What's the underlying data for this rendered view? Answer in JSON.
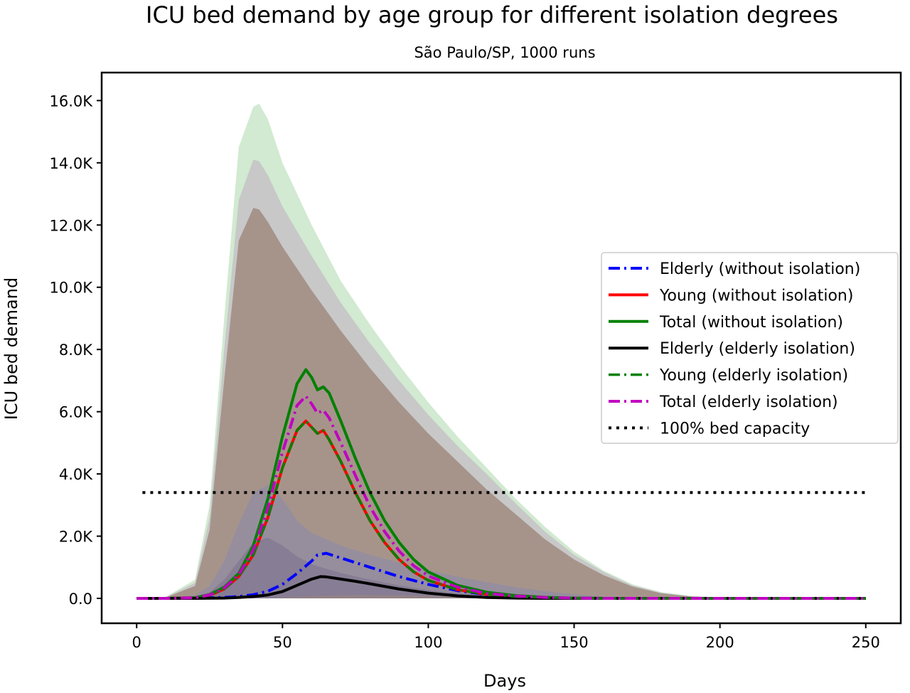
{
  "chart_data": {
    "type": "line",
    "title": "ICU bed demand by age group for different isolation degrees",
    "subtitle": "São Paulo/SP, 1000 runs",
    "xlabel": "Days",
    "ylabel": "ICU bed demand",
    "xlim": [
      -12,
      262
    ],
    "ylim": [
      -800,
      16900
    ],
    "xticks": [
      0,
      50,
      100,
      150,
      200,
      250
    ],
    "xtick_labels": [
      "0",
      "50",
      "100",
      "150",
      "200",
      "250"
    ],
    "yticks": [
      0,
      2000,
      4000,
      6000,
      8000,
      10000,
      12000,
      14000,
      16000
    ],
    "ytick_labels": [
      "0.0",
      "2.0K",
      "4.0K",
      "6.0K",
      "8.0K",
      "10.0K",
      "12.0K",
      "14.0K",
      "16.0K"
    ],
    "legend_position": "right",
    "bands": [
      {
        "color": "#2ca02c",
        "opacity": 0.22,
        "x": [
          0,
          10,
          20,
          25,
          30,
          35,
          40,
          42,
          45,
          50,
          60,
          70,
          80,
          90,
          100,
          110,
          120,
          130,
          140,
          150,
          160,
          170,
          180,
          190,
          200,
          210,
          220,
          250
        ],
        "upper": [
          0,
          50,
          600,
          3000,
          9000,
          14500,
          15800,
          15900,
          15400,
          14000,
          12000,
          10200,
          8800,
          7500,
          6300,
          5200,
          4200,
          3200,
          2300,
          1500,
          900,
          450,
          200,
          80,
          30,
          10,
          0,
          0
        ],
        "lower": [
          0,
          0,
          0,
          0,
          0,
          0,
          0,
          0,
          0,
          0,
          0,
          0,
          0,
          0,
          0,
          0,
          0,
          0,
          0,
          0,
          0,
          0,
          0,
          0,
          0,
          0,
          0,
          0
        ]
      },
      {
        "color": "#b070b0",
        "opacity": 0.28,
        "x": [
          0,
          10,
          20,
          25,
          30,
          35,
          40,
          42,
          45,
          50,
          60,
          70,
          80,
          90,
          100,
          110,
          120,
          130,
          140,
          150,
          160,
          170,
          180,
          190,
          200,
          210,
          250
        ],
        "upper": [
          0,
          40,
          500,
          2600,
          8000,
          12800,
          14100,
          14050,
          13600,
          12600,
          11000,
          9500,
          8200,
          7000,
          5900,
          4900,
          4000,
          3050,
          2150,
          1400,
          850,
          420,
          180,
          70,
          25,
          5,
          0
        ],
        "lower": [
          0,
          0,
          0,
          0,
          0,
          0,
          0,
          0,
          0,
          0,
          0,
          0,
          0,
          0,
          0,
          0,
          0,
          0,
          0,
          0,
          0,
          0,
          0,
          0,
          0,
          0,
          0
        ]
      },
      {
        "color": "#8a6a5a",
        "opacity": 0.55,
        "x": [
          0,
          10,
          20,
          25,
          30,
          35,
          40,
          42,
          45,
          50,
          60,
          70,
          80,
          90,
          100,
          110,
          120,
          130,
          140,
          150,
          160,
          170,
          180,
          190,
          200,
          210,
          250
        ],
        "upper": [
          0,
          30,
          400,
          2200,
          7000,
          11500,
          12550,
          12500,
          12100,
          11300,
          9900,
          8600,
          7400,
          6300,
          5300,
          4400,
          3500,
          2700,
          1900,
          1250,
          750,
          380,
          160,
          60,
          20,
          5,
          0
        ],
        "lower": [
          0,
          0,
          0,
          0,
          0,
          0,
          0,
          0,
          0,
          0,
          0,
          0,
          0,
          0,
          0,
          0,
          0,
          0,
          0,
          0,
          0,
          0,
          0,
          0,
          0,
          0,
          0
        ]
      },
      {
        "color": "#7080c8",
        "opacity": 0.3,
        "x": [
          0,
          10,
          20,
          25,
          30,
          35,
          40,
          45,
          50,
          55,
          60,
          65,
          70,
          80,
          90,
          100,
          110,
          120,
          130,
          140,
          150,
          160,
          170,
          180,
          190,
          200,
          250
        ],
        "upper": [
          0,
          0,
          100,
          400,
          1200,
          2400,
          3400,
          3650,
          3200,
          2500,
          2100,
          1900,
          1700,
          1400,
          1150,
          900,
          700,
          520,
          360,
          230,
          130,
          60,
          20,
          5,
          0,
          0,
          0
        ],
        "lower": [
          0,
          0,
          0,
          0,
          0,
          0,
          0,
          0,
          20,
          50,
          70,
          90,
          100,
          110,
          100,
          80,
          50,
          25,
          10,
          5,
          0,
          0,
          0,
          0,
          0,
          0,
          0
        ]
      },
      {
        "color": "#5a4a7a",
        "opacity": 0.25,
        "x": [
          0,
          10,
          20,
          25,
          30,
          35,
          40,
          45,
          50,
          55,
          60,
          65,
          70,
          80,
          90,
          100,
          110,
          120,
          130,
          140,
          150,
          250
        ],
        "upper": [
          0,
          0,
          60,
          200,
          600,
          1200,
          1800,
          1950,
          1700,
          1350,
          1100,
          950,
          820,
          600,
          420,
          270,
          160,
          80,
          30,
          10,
          0,
          0
        ],
        "lower": [
          0,
          0,
          0,
          0,
          0,
          0,
          0,
          0,
          0,
          0,
          0,
          0,
          0,
          0,
          0,
          0,
          0,
          0,
          0,
          0,
          0,
          0
        ]
      }
    ],
    "series": [
      {
        "label": "Elderly (without isolation)",
        "color": "#0000ff",
        "style": "dashdot",
        "width": 4,
        "x": [
          0,
          10,
          20,
          30,
          35,
          40,
          45,
          50,
          55,
          60,
          62,
          65,
          70,
          75,
          80,
          90,
          100,
          110,
          120,
          130,
          140,
          150,
          160,
          250
        ],
        "y": [
          0,
          0,
          0,
          30,
          60,
          120,
          230,
          450,
          800,
          1200,
          1400,
          1450,
          1300,
          1150,
          1000,
          700,
          450,
          250,
          120,
          50,
          15,
          5,
          0,
          0
        ]
      },
      {
        "label": "Young (without isolation)",
        "color": "#ff0000",
        "style": "solid",
        "width": 4,
        "x": [
          0,
          10,
          20,
          25,
          30,
          35,
          40,
          45,
          50,
          55,
          58,
          60,
          62,
          64,
          66,
          70,
          75,
          80,
          85,
          90,
          95,
          100,
          110,
          120,
          130,
          140,
          150,
          160,
          250
        ],
        "y": [
          0,
          0,
          20,
          100,
          300,
          700,
          1400,
          2600,
          4200,
          5400,
          5700,
          5500,
          5300,
          5400,
          5100,
          4400,
          3400,
          2500,
          1800,
          1250,
          850,
          580,
          280,
          130,
          60,
          25,
          8,
          0,
          0
        ]
      },
      {
        "label": "Total (without isolation)",
        "color": "#008000",
        "style": "solid",
        "width": 4,
        "x": [
          0,
          10,
          20,
          25,
          30,
          35,
          40,
          45,
          50,
          55,
          58,
          60,
          62,
          64,
          66,
          70,
          75,
          80,
          85,
          90,
          95,
          100,
          110,
          120,
          130,
          140,
          150,
          160,
          250
        ],
        "y": [
          0,
          0,
          20,
          120,
          360,
          800,
          1700,
          3200,
          5200,
          6900,
          7350,
          7100,
          6700,
          6800,
          6600,
          5700,
          4500,
          3400,
          2500,
          1800,
          1250,
          850,
          420,
          200,
          90,
          35,
          10,
          0,
          0
        ]
      },
      {
        "label": "Elderly (elderly isolation)",
        "color": "#000000",
        "style": "solid",
        "width": 4,
        "x": [
          0,
          10,
          20,
          30,
          35,
          40,
          45,
          50,
          55,
          60,
          63,
          65,
          70,
          75,
          80,
          90,
          100,
          110,
          120,
          130,
          140,
          150,
          250
        ],
        "y": [
          0,
          0,
          0,
          10,
          30,
          60,
          110,
          220,
          420,
          620,
          700,
          690,
          620,
          550,
          470,
          300,
          170,
          80,
          30,
          10,
          0,
          0,
          0
        ]
      },
      {
        "label": "Young (elderly isolation)",
        "color": "#008000",
        "style": "dashdot",
        "width": 3.5,
        "x": [
          0,
          10,
          20,
          25,
          30,
          35,
          40,
          45,
          50,
          55,
          58,
          60,
          62,
          64,
          66,
          70,
          75,
          80,
          85,
          90,
          95,
          100,
          110,
          120,
          130,
          140,
          150,
          160,
          250
        ],
        "y": [
          0,
          0,
          20,
          100,
          300,
          700,
          1400,
          2600,
          4200,
          5400,
          5700,
          5500,
          5300,
          5400,
          5100,
          4400,
          3400,
          2500,
          1800,
          1250,
          850,
          580,
          280,
          130,
          60,
          25,
          8,
          0,
          0
        ]
      },
      {
        "label": "Total (elderly isolation)",
        "color": "#c000c0",
        "style": "dashdot",
        "width": 4,
        "x": [
          0,
          10,
          20,
          25,
          30,
          35,
          40,
          45,
          50,
          55,
          58,
          60,
          62,
          64,
          66,
          70,
          75,
          80,
          85,
          90,
          95,
          100,
          110,
          120,
          130,
          140,
          150,
          160,
          250
        ],
        "y": [
          0,
          0,
          20,
          110,
          330,
          760,
          1550,
          2900,
          4700,
          6200,
          6500,
          6250,
          5950,
          6050,
          5800,
          5000,
          3950,
          2950,
          2150,
          1520,
          1050,
          720,
          360,
          160,
          75,
          30,
          9,
          0,
          0
        ]
      },
      {
        "label": "100% bed capacity",
        "color": "#000000",
        "style": "dotted",
        "width": 4,
        "x": [
          2,
          250
        ],
        "y": [
          3400,
          3400
        ]
      }
    ]
  }
}
